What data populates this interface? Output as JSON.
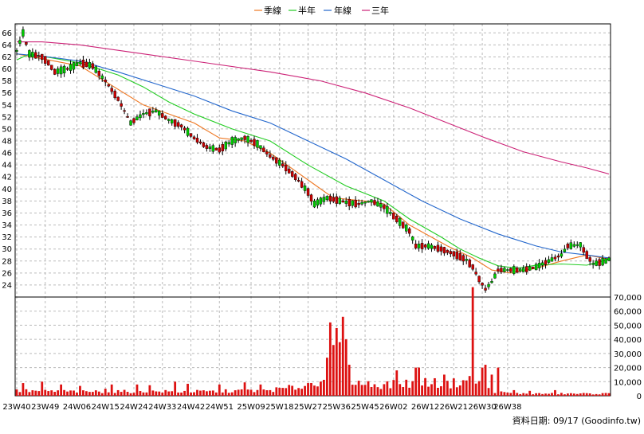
{
  "chart_data": [
    {
      "type": "candlestick",
      "panel": "price",
      "legend": [
        "季線",
        "半年",
        "年線",
        "三年"
      ],
      "ylim": [
        22,
        67.5
      ],
      "yticks": [
        24,
        26,
        28,
        30,
        32,
        34,
        36,
        38,
        40,
        42,
        44,
        46,
        48,
        50,
        52,
        54,
        56,
        58,
        60,
        62,
        64,
        66
      ],
      "up_color": "#00cc00",
      "down_color": "#cc0000",
      "anchors": [
        [
          0,
          63
        ],
        [
          2,
          66
        ],
        [
          4,
          62.5
        ],
        [
          8,
          62
        ],
        [
          10,
          61
        ],
        [
          12,
          59.5
        ],
        [
          16,
          60
        ],
        [
          20,
          61
        ],
        [
          24,
          60.5
        ],
        [
          28,
          58
        ],
        [
          32,
          55
        ],
        [
          34,
          53
        ],
        [
          36,
          51
        ],
        [
          40,
          52.5
        ],
        [
          44,
          53
        ],
        [
          48,
          51.5
        ],
        [
          52,
          50.5
        ],
        [
          56,
          48.5
        ],
        [
          60,
          47
        ],
        [
          64,
          46.5
        ],
        [
          68,
          48
        ],
        [
          72,
          48.5
        ],
        [
          76,
          47.5
        ],
        [
          80,
          45.5
        ],
        [
          84,
          44
        ],
        [
          88,
          42
        ],
        [
          92,
          39.5
        ],
        [
          94,
          37.5
        ],
        [
          98,
          38.5
        ],
        [
          104,
          37.8
        ],
        [
          108,
          37.5
        ],
        [
          112,
          38
        ],
        [
          116,
          37
        ],
        [
          120,
          35
        ],
        [
          124,
          33
        ],
        [
          126,
          30.5
        ],
        [
          130,
          30.5
        ],
        [
          134,
          30
        ],
        [
          138,
          29.2
        ],
        [
          142,
          28.2
        ],
        [
          144,
          27
        ],
        [
          146,
          25
        ],
        [
          148,
          23.3
        ],
        [
          150,
          24.5
        ],
        [
          152,
          26.5
        ],
        [
          156,
          26.5
        ],
        [
          160,
          26.5
        ],
        [
          164,
          27
        ],
        [
          168,
          28
        ],
        [
          172,
          29
        ],
        [
          174,
          30.5
        ],
        [
          178,
          30.7
        ],
        [
          180,
          29
        ],
        [
          182,
          27.5
        ],
        [
          186,
          28
        ],
        [
          187,
          28.3
        ]
      ],
      "series": [
        {
          "name": "季線",
          "color": "#ee7722",
          "points": [
            [
              0,
              62.5
            ],
            [
              20,
              60.5
            ],
            [
              40,
              54
            ],
            [
              56,
              51
            ],
            [
              64,
              48.5
            ],
            [
              72,
              48
            ],
            [
              80,
              46
            ],
            [
              92,
              41.5
            ],
            [
              100,
              38.5
            ],
            [
              110,
              38
            ],
            [
              116,
              37.5
            ],
            [
              124,
              34
            ],
            [
              136,
              30.5
            ],
            [
              144,
              28.5
            ],
            [
              150,
              26.5
            ],
            [
              156,
              26
            ],
            [
              164,
              26.8
            ],
            [
              172,
              28
            ],
            [
              180,
              29
            ],
            [
              187,
              28.3
            ]
          ]
        },
        {
          "name": "半年",
          "color": "#22cc22",
          "points": [
            [
              0,
              61.5
            ],
            [
              4,
              62.5
            ],
            [
              20,
              61
            ],
            [
              32,
              59
            ],
            [
              40,
              57
            ],
            [
              48,
              54.5
            ],
            [
              56,
              52.5
            ],
            [
              68,
              50
            ],
            [
              80,
              48
            ],
            [
              92,
              44
            ],
            [
              104,
              40.5
            ],
            [
              116,
              38
            ],
            [
              124,
              35
            ],
            [
              134,
              32
            ],
            [
              140,
              30
            ],
            [
              146,
              28.5
            ],
            [
              152,
              27.2
            ],
            [
              158,
              26.8
            ],
            [
              164,
              27.3
            ],
            [
              172,
              27.5
            ],
            [
              180,
              27.3
            ],
            [
              187,
              28.3
            ]
          ]
        },
        {
          "name": "年線",
          "color": "#2266cc",
          "points": [
            [
              0,
              62.5
            ],
            [
              10,
              62
            ],
            [
              20,
              61.3
            ],
            [
              32,
              59.5
            ],
            [
              44,
              57.5
            ],
            [
              56,
              55.5
            ],
            [
              68,
              53
            ],
            [
              80,
              51
            ],
            [
              92,
              48
            ],
            [
              104,
              45
            ],
            [
              116,
              41.5
            ],
            [
              128,
              38
            ],
            [
              140,
              35
            ],
            [
              152,
              32.5
            ],
            [
              164,
              30.5
            ],
            [
              172,
              29.5
            ],
            [
              180,
              29
            ],
            [
              187,
              28.5
            ]
          ]
        },
        {
          "name": "三年",
          "color": "#cc2277",
          "points": [
            [
              0,
              64.5
            ],
            [
              8,
              64.5
            ],
            [
              20,
              64
            ],
            [
              40,
              62.5
            ],
            [
              60,
              61
            ],
            [
              80,
              59.5
            ],
            [
              96,
              58
            ],
            [
              110,
              56
            ],
            [
              124,
              53.5
            ],
            [
              136,
              51
            ],
            [
              148,
              48.5
            ],
            [
              160,
              46.2
            ],
            [
              172,
              44.5
            ],
            [
              180,
              43.5
            ],
            [
              187,
              42.5
            ]
          ]
        }
      ]
    },
    {
      "type": "bar",
      "panel": "volume",
      "ylim": [
        0,
        70000
      ],
      "yticks": [
        0,
        10000,
        20000,
        30000,
        40000,
        50000,
        60000,
        70000
      ],
      "ytick_labels": [
        "0",
        "10,000",
        "20,000",
        "30,000",
        "40,000",
        "50,000",
        "60,000",
        "70,000"
      ],
      "bar_color": "#dd1111",
      "base_anchors": [
        [
          0,
          3500
        ],
        [
          20,
          3000
        ],
        [
          40,
          3000
        ],
        [
          60,
          3000
        ],
        [
          80,
          4000
        ],
        [
          92,
          7000
        ],
        [
          96,
          12000
        ],
        [
          100,
          25000
        ],
        [
          104,
          15000
        ],
        [
          108,
          9000
        ],
        [
          112,
          8000
        ],
        [
          120,
          8000
        ],
        [
          128,
          10000
        ],
        [
          136,
          8000
        ],
        [
          140,
          10000
        ],
        [
          144,
          12000
        ],
        [
          148,
          5000
        ],
        [
          152,
          2500
        ],
        [
          160,
          1500
        ],
        [
          170,
          1500
        ],
        [
          180,
          1500
        ],
        [
          187,
          1500
        ]
      ],
      "spikes": [
        [
          2,
          9000
        ],
        [
          8,
          10000
        ],
        [
          14,
          8000
        ],
        [
          20,
          7000
        ],
        [
          28,
          5000
        ],
        [
          30,
          8000
        ],
        [
          38,
          8000
        ],
        [
          42,
          7500
        ],
        [
          50,
          10000
        ],
        [
          54,
          8500
        ],
        [
          64,
          8000
        ],
        [
          72,
          9500
        ],
        [
          77,
          8000
        ],
        [
          92,
          9000
        ],
        [
          98,
          27000
        ],
        [
          99,
          52000
        ],
        [
          100,
          36000
        ],
        [
          101,
          48000
        ],
        [
          102,
          38000
        ],
        [
          103,
          56000
        ],
        [
          104,
          40000
        ],
        [
          105,
          22000
        ],
        [
          120,
          18000
        ],
        [
          126,
          20000
        ],
        [
          127,
          20000
        ],
        [
          135,
          15000
        ],
        [
          143,
          14000
        ],
        [
          144,
          77000
        ],
        [
          147,
          20000
        ],
        [
          148,
          22000
        ],
        [
          150,
          15000
        ],
        [
          152,
          20000
        ],
        [
          157,
          4000
        ],
        [
          162,
          3500
        ],
        [
          170,
          4000
        ]
      ]
    },
    {
      "type": "x-axis",
      "ticks": [
        "23W40",
        "23W49",
        "24W06",
        "24W15",
        "24W24",
        "24W33",
        "24W42",
        "24W51",
        "25W09",
        "25W18",
        "25W27",
        "25W36",
        "25W45",
        "26W02",
        "26W12",
        "26W21",
        "26W30",
        "26W38"
      ],
      "tick_index": [
        0,
        9,
        19,
        28,
        37,
        46,
        55,
        64,
        74,
        83,
        92,
        101,
        110,
        119,
        129,
        138,
        147,
        155
      ]
    }
  ],
  "credit": "資料日期: 09/17  (Goodinfo.tw)"
}
